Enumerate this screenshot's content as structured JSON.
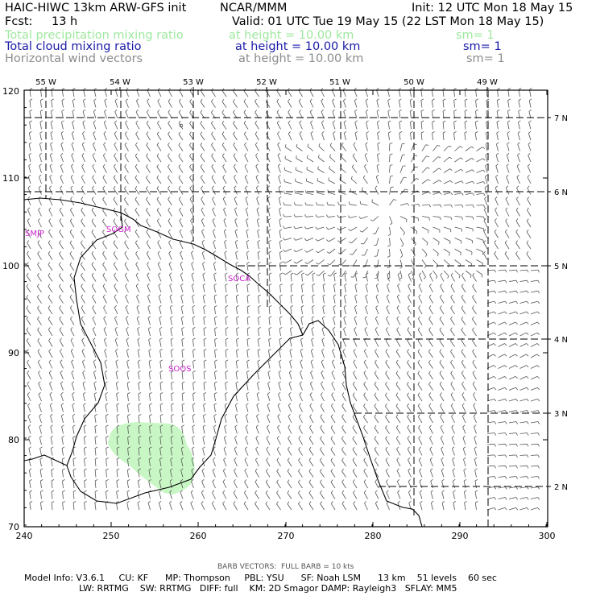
{
  "header": {
    "title": "HAIC-HIWC 13km ARW-GFS init",
    "org": "NCAR/MMM",
    "init": "Init: 12 UTC Mon 18 May 15",
    "fcst_label": "Fcst:",
    "fcst_value": "13 h",
    "valid": "Valid: 01 UTC Tue 19 May 15 (22 LST Mon 18 May 15)"
  },
  "fields": [
    {
      "name": "Total precipitation mixing ratio",
      "height": "at height = 10.00 km",
      "sm": "sm= 1",
      "color": "#9ee89e"
    },
    {
      "name": "Total cloud mixing ratio",
      "height": "at height = 10.00 km",
      "sm": "sm= 1",
      "color": "#1a1aa8"
    },
    {
      "name": "Horizontal wind vectors",
      "height": "at height = 10.00 km",
      "sm": "sm= 1",
      "color": "#8c8c8c"
    }
  ],
  "map": {
    "x_ticks": [
      "240",
      "250",
      "260",
      "270",
      "280",
      "290",
      "300"
    ],
    "y_ticks": [
      "70",
      "80",
      "90",
      "100",
      "110",
      "120"
    ],
    "lon_labels": [
      "55 W",
      "54 W",
      "53 W",
      "52 W",
      "51 W",
      "50 W",
      "49 W"
    ],
    "lat_labels": [
      "7 N",
      "6 N",
      "5 N",
      "4 N",
      "3 N",
      "2 N"
    ],
    "stations": [
      "SMJP",
      "SOGM",
      "SOCA",
      "SOOS"
    ],
    "precip_color": "#c8f7c5"
  },
  "footer": {
    "barb_note": "BARB VECTORS:  FULL BARB = 10 kts",
    "model_info": "Model Info: V3.6.1     CU: KF      MP: Thompson     PBL: YSU      SF: Noah LSM      13 km    51 levels    60 sec",
    "model_info2": "LW: RRTMG    SW: RRTMG   DIFF: full    KM: 2D Smagor DAMP: Rayleigh3   SFLAY: MM5"
  }
}
